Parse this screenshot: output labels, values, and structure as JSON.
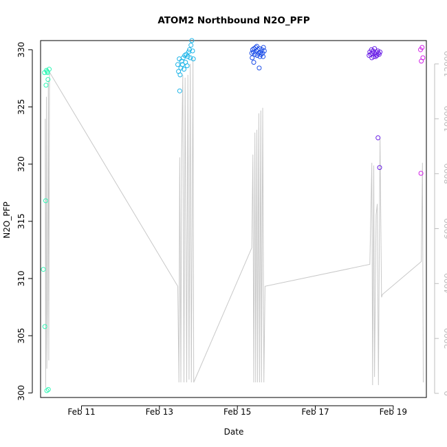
{
  "chart_data": {
    "type": "scatter",
    "title": "ATOM2 Northbound N2O_PFP",
    "xlabel": "Date",
    "ylabel": "N2O_PFP",
    "x_axis": {
      "range_days": [
        9.95,
        19.85
      ],
      "ticks": [
        {
          "value": 11,
          "label": "Feb 11"
        },
        {
          "value": 13,
          "label": "Feb 13"
        },
        {
          "value": 15,
          "label": "Feb 15"
        },
        {
          "value": 17,
          "label": "Feb 17"
        },
        {
          "value": 19,
          "label": "Feb 19"
        }
      ]
    },
    "y_left": {
      "range": [
        299.6,
        330.8
      ],
      "ticks": [
        300,
        305,
        310,
        315,
        320,
        325,
        330
      ]
    },
    "y_right": {
      "range": [
        -150,
        12850
      ],
      "ticks": [
        0,
        2000,
        4000,
        6000,
        8000,
        10000,
        12000
      ],
      "color": "#bdbdbd"
    },
    "grid": false,
    "legend": "none",
    "altitude_series": {
      "color": "#c8c8c8",
      "points": [
        [
          10.07,
          10000
        ],
        [
          10.08,
          200
        ],
        [
          10.1,
          10800
        ],
        [
          10.11,
          900
        ],
        [
          10.13,
          3700
        ],
        [
          10.15,
          11400
        ],
        [
          10.16,
          1200
        ],
        [
          10.18,
          11700
        ],
        [
          13.47,
          3900
        ],
        [
          13.5,
          400
        ],
        [
          13.52,
          8600
        ],
        [
          13.55,
          400
        ],
        [
          13.57,
          8800
        ],
        [
          13.6,
          11600
        ],
        [
          13.63,
          400
        ],
        [
          13.66,
          11500
        ],
        [
          13.7,
          400
        ],
        [
          13.73,
          11600
        ],
        [
          13.76,
          500
        ],
        [
          13.79,
          12000
        ],
        [
          13.82,
          400
        ],
        [
          13.86,
          12200
        ],
        [
          13.88,
          400
        ],
        [
          15.37,
          5300
        ],
        [
          15.4,
          8700
        ],
        [
          15.42,
          400
        ],
        [
          15.45,
          9500
        ],
        [
          15.47,
          400
        ],
        [
          15.5,
          9600
        ],
        [
          15.52,
          400
        ],
        [
          15.55,
          10200
        ],
        [
          15.57,
          400
        ],
        [
          15.6,
          10300
        ],
        [
          15.62,
          400
        ],
        [
          15.65,
          10400
        ],
        [
          15.68,
          400
        ],
        [
          15.71,
          3900
        ],
        [
          18.4,
          4700
        ],
        [
          18.45,
          8400
        ],
        [
          18.47,
          300
        ],
        [
          18.5,
          8300
        ],
        [
          18.52,
          600
        ],
        [
          18.56,
          6500
        ],
        [
          18.59,
          6900
        ],
        [
          18.62,
          300
        ],
        [
          18.66,
          9300
        ],
        [
          18.7,
          3500
        ],
        [
          18.72,
          3600
        ],
        [
          19.72,
          4800
        ],
        [
          19.75,
          8400
        ],
        [
          19.77,
          400
        ]
      ]
    },
    "series": [
      {
        "name": "",
        "color": "#2ef7b5",
        "points": [
          [
            10.02,
            310.8
          ],
          [
            10.05,
            328.0
          ],
          [
            10.06,
            305.8
          ],
          [
            10.08,
            316.8
          ],
          [
            10.09,
            326.9
          ],
          [
            10.1,
            328.2
          ],
          [
            10.11,
            300.2
          ],
          [
            10.12,
            328.1
          ],
          [
            10.13,
            328.0
          ],
          [
            10.14,
            327.4
          ],
          [
            10.15,
            300.3
          ],
          [
            10.17,
            328.3
          ]
        ]
      },
      {
        "name": "",
        "color": "#1bb4e8",
        "points": [
          [
            13.47,
            328.7
          ],
          [
            13.49,
            328.1
          ],
          [
            13.51,
            329.2
          ],
          [
            13.53,
            327.8
          ],
          [
            13.55,
            328.4
          ],
          [
            13.57,
            329.0
          ],
          [
            13.59,
            328.7
          ],
          [
            13.61,
            329.3
          ],
          [
            13.63,
            328.3
          ],
          [
            13.65,
            329.5
          ],
          [
            13.67,
            328.9
          ],
          [
            13.69,
            329.6
          ],
          [
            13.71,
            328.6
          ],
          [
            13.73,
            329.4
          ],
          [
            13.75,
            329.8
          ],
          [
            13.77,
            330.0
          ],
          [
            13.79,
            329.3
          ],
          [
            13.81,
            330.4
          ],
          [
            13.83,
            330.8
          ],
          [
            13.85,
            329.9
          ],
          [
            13.87,
            329.2
          ],
          [
            13.52,
            326.4
          ]
        ]
      },
      {
        "name": "",
        "color": "#1e4fe8",
        "points": [
          [
            15.37,
            329.7
          ],
          [
            15.39,
            330.0
          ],
          [
            15.41,
            329.8
          ],
          [
            15.43,
            330.1
          ],
          [
            15.45,
            329.6
          ],
          [
            15.47,
            330.2
          ],
          [
            15.49,
            329.9
          ],
          [
            15.51,
            329.5
          ],
          [
            15.53,
            330.0
          ],
          [
            15.55,
            329.7
          ],
          [
            15.57,
            330.1
          ],
          [
            15.59,
            329.8
          ],
          [
            15.61,
            329.6
          ],
          [
            15.63,
            330.0
          ],
          [
            15.65,
            329.7
          ],
          [
            15.67,
            330.2
          ],
          [
            15.69,
            329.9
          ],
          [
            15.38,
            329.3
          ],
          [
            15.42,
            328.9
          ],
          [
            15.5,
            330.3
          ],
          [
            15.58,
            329.4
          ],
          [
            15.66,
            329.4
          ],
          [
            15.56,
            328.4
          ]
        ]
      },
      {
        "name": "",
        "color": "#6a1fe6",
        "points": [
          [
            18.38,
            329.5
          ],
          [
            18.4,
            329.8
          ],
          [
            18.42,
            329.6
          ],
          [
            18.44,
            330.0
          ],
          [
            18.46,
            329.7
          ],
          [
            18.48,
            329.9
          ],
          [
            18.5,
            329.4
          ],
          [
            18.52,
            330.1
          ],
          [
            18.54,
            329.6
          ],
          [
            18.56,
            329.8
          ],
          [
            18.58,
            329.5
          ],
          [
            18.6,
            329.9
          ],
          [
            18.62,
            329.7
          ],
          [
            18.64,
            329.6
          ],
          [
            18.66,
            329.8
          ],
          [
            18.45,
            329.3
          ],
          [
            18.55,
            329.4
          ],
          [
            18.61,
            322.3
          ],
          [
            18.65,
            319.7
          ]
        ]
      },
      {
        "name": "",
        "color": "#d21ee8",
        "points": [
          [
            19.7,
            330.0
          ],
          [
            19.72,
            329.0
          ],
          [
            19.74,
            330.2
          ],
          [
            19.76,
            329.3
          ],
          [
            19.71,
            319.2
          ]
        ]
      }
    ]
  }
}
